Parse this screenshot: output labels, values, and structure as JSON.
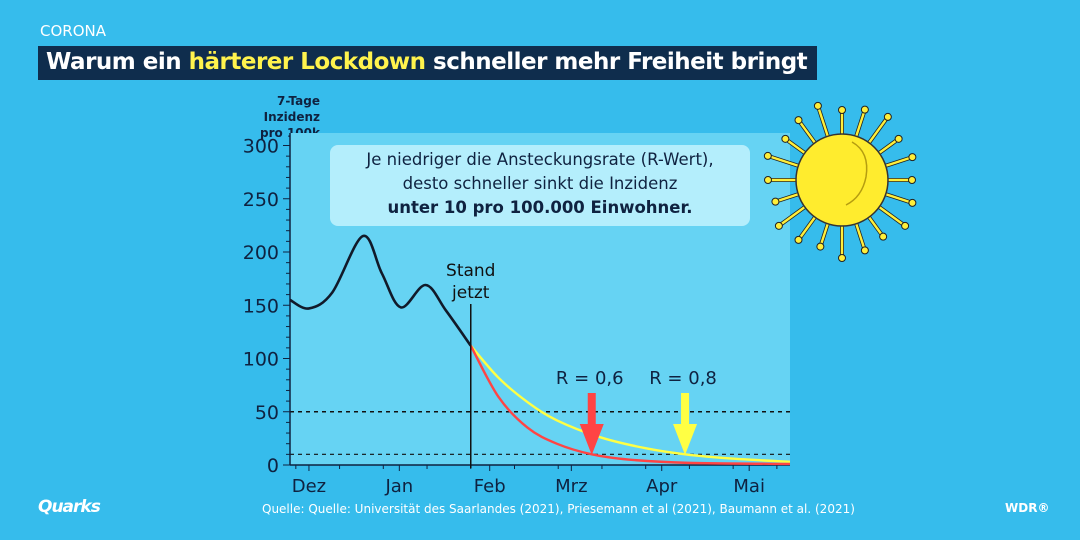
{
  "kicker": "CORONA",
  "title": {
    "before": "Warum ein ",
    "highlight": "härterer Lockdown",
    "after": " schneller mehr Freiheit bringt"
  },
  "note": {
    "line1": "Je niedriger die Ansteckungsrate (R-Wert),",
    "line2": "desto schneller sinkt die Inzidenz",
    "line3": "unter 10 pro 100.000 Einwohner."
  },
  "source": "Quelle: Quelle: Universität des Saarlandes (2021), Priesemann et al (2021), Baumann et al. (2021)",
  "brand_left": "Quarks",
  "brand_right": "WDR®",
  "chart_data": {
    "type": "line",
    "ylabel_line1": "7-Tage Inzidenz",
    "ylabel_line2": "pro 100k",
    "ylim": [
      0,
      300
    ],
    "xlim": [
      -6.5,
      165
    ],
    "x_unit": "days since 1 Dec",
    "yticks": [
      0,
      50,
      100,
      150,
      200,
      250,
      300
    ],
    "xticks": [
      {
        "label": "Dez",
        "x": 0
      },
      {
        "label": "Jan",
        "x": 31
      },
      {
        "label": "Feb",
        "x": 62
      },
      {
        "label": "Mrz",
        "x": 90
      },
      {
        "label": "Apr",
        "x": 121
      },
      {
        "label": "Mai",
        "x": 151
      }
    ],
    "reference_lines": [
      50,
      10
    ],
    "now_marker": {
      "x": 55.5,
      "label1": "Stand",
      "label2": "jetzt"
    },
    "series": [
      {
        "name": "Verlauf",
        "color": "#111a2a",
        "points": [
          [
            -6.5,
            155
          ],
          [
            0,
            147
          ],
          [
            8,
            162
          ],
          [
            18.5,
            215
          ],
          [
            25,
            180
          ],
          [
            31.5,
            148
          ],
          [
            40,
            169
          ],
          [
            47,
            145
          ],
          [
            55.5,
            112
          ]
        ]
      },
      {
        "name": "R = 0,8",
        "color": "#ffff44",
        "points": [
          [
            55.5,
            112
          ],
          [
            65,
            82
          ],
          [
            75,
            59
          ],
          [
            85,
            42
          ],
          [
            100,
            26
          ],
          [
            115,
            16
          ],
          [
            129,
            10
          ],
          [
            145,
            6
          ],
          [
            165,
            3
          ]
        ]
      },
      {
        "name": "R = 0,6",
        "color": "#ff4444",
        "points": [
          [
            55.5,
            112
          ],
          [
            65,
            64
          ],
          [
            75,
            35
          ],
          [
            85,
            20
          ],
          [
            97,
            10
          ],
          [
            110,
            5
          ],
          [
            130,
            2
          ],
          [
            165,
            1
          ]
        ]
      }
    ],
    "annotations": [
      {
        "text": "R = 0,6",
        "x": 97,
        "color": "#ff4444"
      },
      {
        "text": "R = 0,8",
        "x": 129,
        "color": "#ffff44"
      }
    ]
  }
}
